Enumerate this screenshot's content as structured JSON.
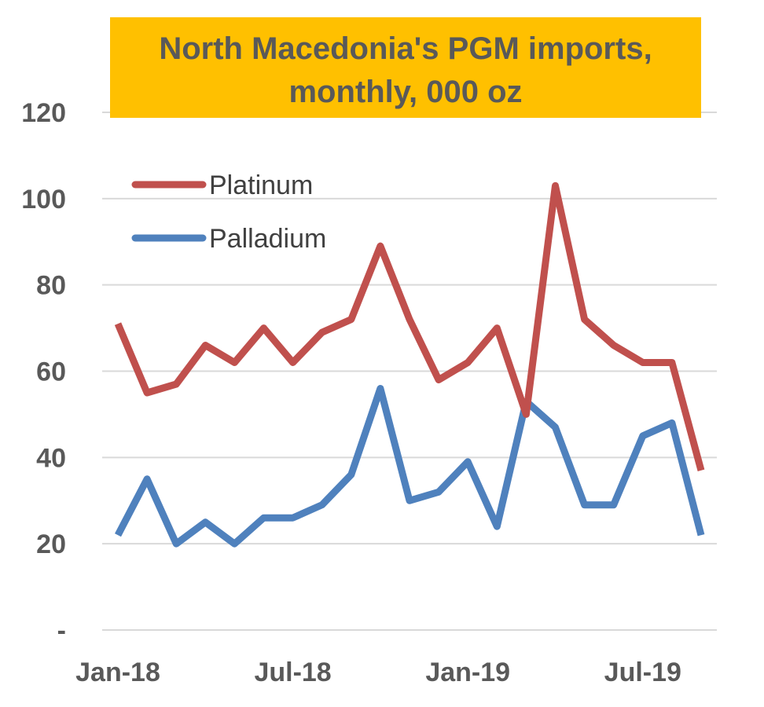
{
  "chart_data": {
    "type": "line",
    "title_line1": "North Macedonia's  PGM imports,",
    "title_line2": "monthly, 000 oz",
    "colors": {
      "title_bg": "#FFC000",
      "platinum": "#C0504D",
      "palladium": "#4F81BD",
      "grid": "#D9D9D9",
      "text": "#595959"
    },
    "x": [
      "Jan-18",
      "Feb-18",
      "Mar-18",
      "Apr-18",
      "May-18",
      "Jun-18",
      "Jul-18",
      "Aug-18",
      "Sep-18",
      "Oct-18",
      "Nov-18",
      "Dec-18",
      "Jan-19",
      "Feb-19",
      "Mar-19",
      "Apr-19",
      "May-19",
      "Jun-19",
      "Jul-19",
      "Aug-19",
      "Sep-19"
    ],
    "x_tick_labels": [
      "Jan-18",
      "Jul-18",
      "Jan-19",
      "Jul-19"
    ],
    "y_tick_labels": [
      "-",
      "20",
      "40",
      "60",
      "80",
      "100",
      "120"
    ],
    "ylim": [
      0,
      120
    ],
    "grid": true,
    "legend_position": "top-left",
    "series": [
      {
        "name": "Platinum",
        "color": "#C0504D",
        "values": [
          71,
          55,
          57,
          66,
          62,
          70,
          62,
          69,
          72,
          89,
          72,
          58,
          62,
          70,
          50,
          103,
          72,
          66,
          62,
          62,
          37
        ]
      },
      {
        "name": "Palladium",
        "color": "#4F81BD",
        "values": [
          22,
          35,
          20,
          25,
          20,
          26,
          26,
          29,
          36,
          56,
          30,
          32,
          39,
          24,
          53,
          47,
          29,
          29,
          45,
          48,
          22
        ]
      }
    ]
  }
}
